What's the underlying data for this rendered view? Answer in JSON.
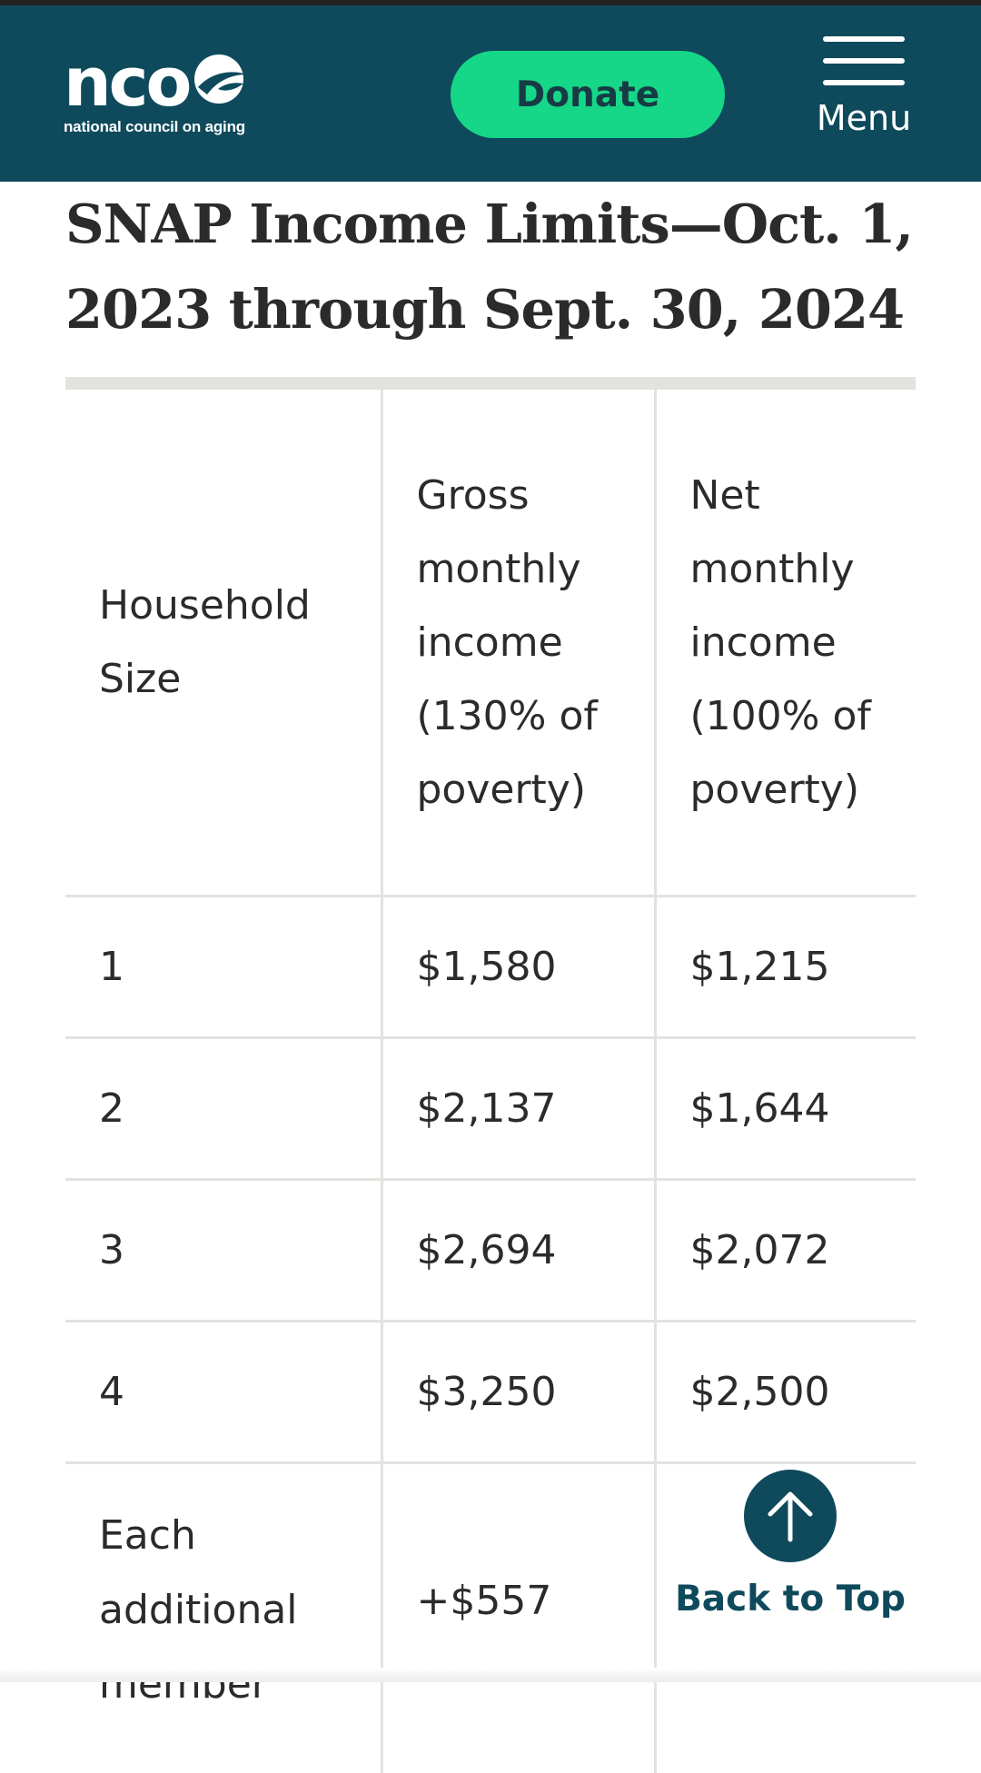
{
  "header": {
    "logo_text": "ncoa",
    "logo_tagline": "national council on aging",
    "donate_label": "Donate",
    "menu_label": "Menu",
    "background_color": "#0e4a5c",
    "donate_color": "#16d687"
  },
  "article": {
    "heading": "SNAP Income Limits—Oct. 1, 2023 through Sept. 30, 2024"
  },
  "table": {
    "headers": {
      "household_size": "Household Size",
      "gross": "Gross monthly income (130% of poverty)",
      "net": "Net monthly income (100% of poverty)"
    },
    "rows": [
      {
        "size": "1",
        "gross": "$1,580",
        "net": "$1,215"
      },
      {
        "size": "2",
        "gross": "$2,137",
        "net": "$1,644"
      },
      {
        "size": "3",
        "gross": "$2,694",
        "net": "$2,072"
      },
      {
        "size": "4",
        "gross": "$3,250",
        "net": "$2,500"
      }
    ],
    "additional": {
      "size": "Each additional member",
      "gross": "+$557",
      "net": ""
    }
  },
  "back_to_top": {
    "label": "Back to Top",
    "icon": "arrow-up-icon"
  }
}
